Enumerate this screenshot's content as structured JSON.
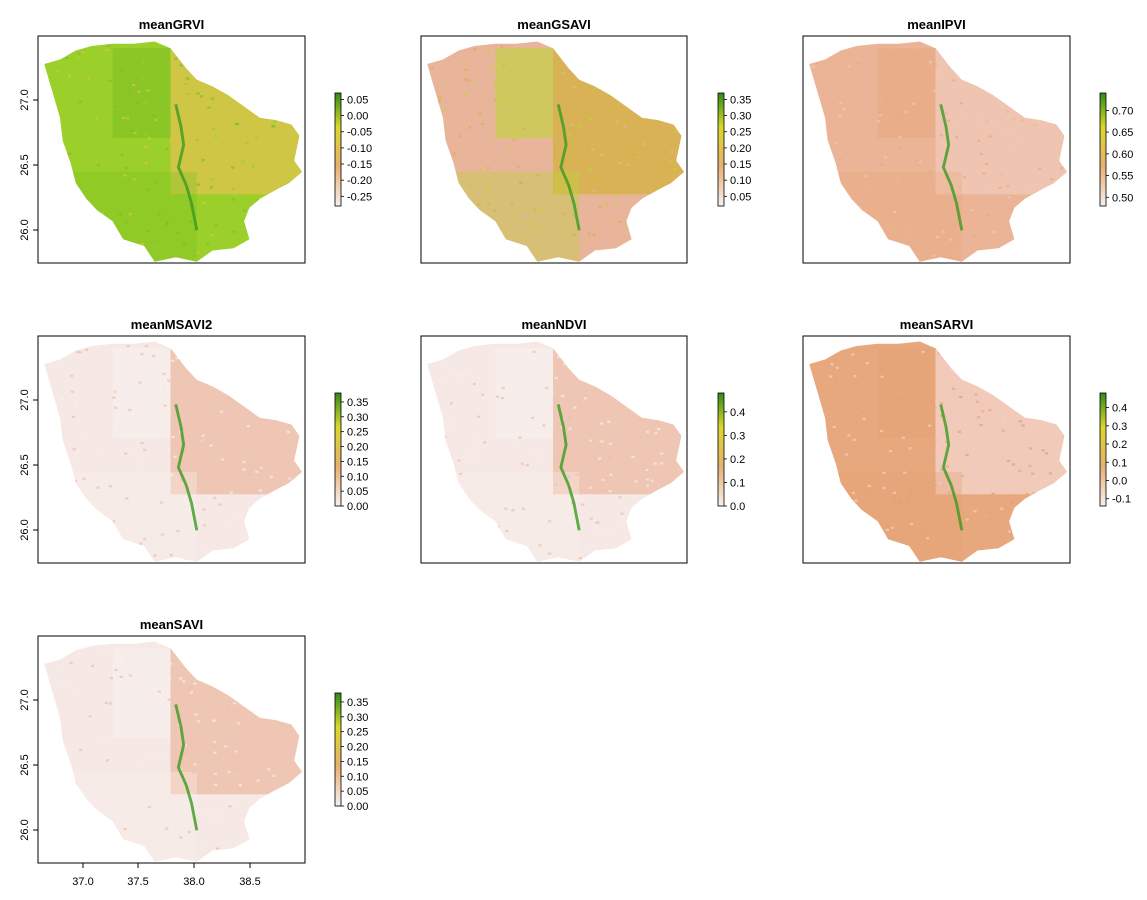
{
  "chart_data": [
    {
      "type": "heatmap",
      "title": "meanGRVI",
      "legend": {
        "labels": [
          "0.05",
          "0.00",
          "-0.05",
          "-0.10",
          "-0.15",
          "-0.20",
          "-0.25"
        ],
        "palette": "terrain",
        "range": [
          -0.28,
          0.07
        ]
      },
      "axes": {
        "yticks": [
          "27.0",
          "26.5",
          "26.0"
        ],
        "xticks": []
      },
      "hue": "green-yellow"
    },
    {
      "type": "heatmap",
      "title": "meanGSAVI",
      "legend": {
        "labels": [
          "0.35",
          "0.30",
          "0.25",
          "0.20",
          "0.15",
          "0.10",
          "0.05"
        ],
        "palette": "terrain",
        "range": [
          0.02,
          0.37
        ]
      },
      "axes": {
        "yticks": [],
        "xticks": []
      },
      "hue": "salmon-yellow"
    },
    {
      "type": "heatmap",
      "title": "meanIPVI",
      "legend": {
        "labels": [
          "0.70",
          "0.65",
          "0.60",
          "0.55",
          "0.50"
        ],
        "palette": "terrain",
        "range": [
          0.48,
          0.74
        ]
      },
      "axes": {
        "yticks": [],
        "xticks": []
      },
      "hue": "salmon"
    },
    {
      "type": "heatmap",
      "title": "meanMSAVI2",
      "legend": {
        "labels": [
          "0.35",
          "0.30",
          "0.25",
          "0.20",
          "0.15",
          "0.10",
          "0.05",
          "0.00"
        ],
        "palette": "terrain",
        "range": [
          0.0,
          0.38
        ]
      },
      "axes": {
        "yticks": [
          "27.0",
          "26.5",
          "26.0"
        ],
        "xticks": []
      },
      "hue": "pale"
    },
    {
      "type": "heatmap",
      "title": "meanNDVI",
      "legend": {
        "labels": [
          "0.4",
          "0.3",
          "0.2",
          "0.1",
          "0.0"
        ],
        "palette": "terrain",
        "range": [
          0.0,
          0.48
        ]
      },
      "axes": {
        "yticks": [],
        "xticks": []
      },
      "hue": "pale"
    },
    {
      "type": "heatmap",
      "title": "meanSARVI",
      "legend": {
        "labels": [
          "0.4",
          "0.3",
          "0.2",
          "0.1",
          "0.0",
          "-0.1"
        ],
        "palette": "terrain",
        "range": [
          -0.14,
          0.48
        ]
      },
      "axes": {
        "yticks": [],
        "xticks": []
      },
      "hue": "salmon-dark"
    },
    {
      "type": "heatmap",
      "title": "meanSAVI",
      "legend": {
        "labels": [
          "0.35",
          "0.30",
          "0.25",
          "0.20",
          "0.15",
          "0.10",
          "0.05",
          "0.00"
        ],
        "palette": "terrain",
        "range": [
          0.0,
          0.38
        ]
      },
      "axes": {
        "yticks": [
          "27.0",
          "26.5",
          "26.0"
        ],
        "xticks": [
          "37.0",
          "37.5",
          "38.0",
          "38.5"
        ]
      },
      "hue": "pale"
    }
  ],
  "colors": {
    "frame": "#000000",
    "legend_top": "#2e8b1a",
    "legend_mid": "#d8d82a",
    "legend_low": "#e8b070",
    "legend_bottom": "#f6f0f0"
  }
}
